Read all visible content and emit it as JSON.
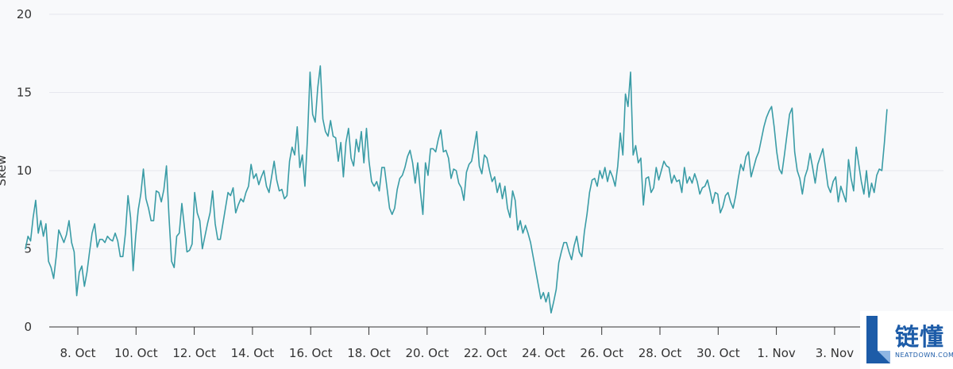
{
  "chart_data": {
    "type": "line",
    "ylabel": "Skew",
    "ylim": [
      0,
      20
    ],
    "y_ticks": [
      "0",
      "5",
      "10",
      "15",
      "20"
    ],
    "x_ticks": [
      "8. Oct",
      "10. Oct",
      "12. Oct",
      "14. Oct",
      "16. Oct",
      "18. Oct",
      "20. Oct",
      "22. Oct",
      "24. Oct",
      "26. Oct",
      "28. Oct",
      "30. Oct",
      "1. Nov",
      "3. Nov"
    ],
    "x_start_tick_index": -0.9,
    "x_end_tick_index": 13.9,
    "line_color": "#3a9ca6",
    "series": [
      {
        "values": [
          5.0,
          5.8,
          5.5,
          7.0,
          8.1,
          6.0,
          6.8,
          5.8,
          6.6,
          4.2,
          3.8,
          3.1,
          4.5,
          6.2,
          5.8,
          5.4,
          5.9,
          6.8,
          5.4,
          4.8,
          2.0,
          3.5,
          3.9,
          2.6,
          3.5,
          4.8,
          6.0,
          6.6,
          5.1,
          5.6,
          5.6,
          5.4,
          5.8,
          5.6,
          5.5,
          6.0,
          5.5,
          4.5,
          4.5,
          6.0,
          8.4,
          7.0,
          3.6,
          5.8,
          7.5,
          8.5,
          10.1,
          8.2,
          7.6,
          6.8,
          6.8,
          8.7,
          8.6,
          8.0,
          8.8,
          10.3,
          7.0,
          4.2,
          3.8,
          5.8,
          6.0,
          7.9,
          6.4,
          4.8,
          4.9,
          5.3,
          8.6,
          7.3,
          6.8,
          5.0,
          5.8,
          6.6,
          7.3,
          8.7,
          6.6,
          5.6,
          5.6,
          6.6,
          7.6,
          8.6,
          8.4,
          8.9,
          7.3,
          7.8,
          8.2,
          8.0,
          8.6,
          9.0,
          10.4,
          9.5,
          9.8,
          9.1,
          9.6,
          10.0,
          9.0,
          8.6,
          9.6,
          10.6,
          9.4,
          8.7,
          8.8,
          8.2,
          8.4,
          10.6,
          11.5,
          11.0,
          12.8,
          10.2,
          11.0,
          9.0,
          12.1,
          16.3,
          13.6,
          13.1,
          15.3,
          16.7,
          13.3,
          12.5,
          12.2,
          13.2,
          12.2,
          12.1,
          10.6,
          11.8,
          9.6,
          11.8,
          12.7,
          10.8,
          10.3,
          12.0,
          11.2,
          12.5,
          10.5,
          12.7,
          10.6,
          9.3,
          9.0,
          9.3,
          8.7,
          10.2,
          10.2,
          8.9,
          7.6,
          7.2,
          7.6,
          8.8,
          9.5,
          9.7,
          10.2,
          10.9,
          11.3,
          10.5,
          9.2,
          10.5,
          8.7,
          7.2,
          10.5,
          9.7,
          11.4,
          11.4,
          11.2,
          12.0,
          12.6,
          11.2,
          11.3,
          10.8,
          9.5,
          10.1,
          10.0,
          9.2,
          8.9,
          8.1,
          9.9,
          10.4,
          10.6,
          11.5,
          12.5,
          10.3,
          9.8,
          11.0,
          10.8,
          10.0,
          9.3,
          9.6,
          8.6,
          9.2,
          8.2,
          9.0,
          7.6,
          7.0,
          8.7,
          8.1,
          6.2,
          6.8,
          6.0,
          6.5,
          6.0,
          5.4,
          4.5,
          3.6,
          2.7,
          1.8,
          2.2,
          1.6,
          2.2,
          0.9,
          1.6,
          2.4,
          4.1,
          4.8,
          5.4,
          5.4,
          4.8,
          4.3,
          5.2,
          5.8,
          4.8,
          4.5,
          6.1,
          7.2,
          8.6,
          9.4,
          9.5,
          9.0,
          10.0,
          9.5,
          10.2,
          9.3,
          10.0,
          9.6,
          9.0,
          10.3,
          12.4,
          11.0,
          14.9,
          14.1,
          16.3,
          11.0,
          11.6,
          10.5,
          10.8,
          7.8,
          9.5,
          9.6,
          8.6,
          8.9,
          10.2,
          9.4,
          10.0,
          10.6,
          10.3,
          10.2,
          9.2,
          9.7,
          9.3,
          9.4,
          8.6,
          10.2,
          9.2,
          9.6,
          9.2,
          9.8,
          9.3,
          8.5,
          8.9,
          9.0,
          9.4,
          8.7,
          7.9,
          8.6,
          8.5,
          7.3,
          7.7,
          8.4,
          8.6,
          8.0,
          7.6,
          8.4,
          9.5,
          10.4,
          10.0,
          10.9,
          11.2,
          9.6,
          10.2,
          10.8,
          11.2,
          12.0,
          12.8,
          13.4,
          13.8,
          14.1,
          12.8,
          11.2,
          10.1,
          9.8,
          11.0,
          12.3,
          13.6,
          14.0,
          11.2,
          10.0,
          9.5,
          8.5,
          9.6,
          10.1,
          11.1,
          10.2,
          9.2,
          10.4,
          10.9,
          11.4,
          10.2,
          9.0,
          8.6,
          9.3,
          9.6,
          8.0,
          9.0,
          8.5,
          8.0,
          10.7,
          9.5,
          8.7,
          11.5,
          10.4,
          9.3,
          8.5,
          10.0,
          8.3,
          9.2,
          8.6,
          9.7,
          10.1,
          10.0,
          11.8,
          13.9
        ]
      }
    ]
  },
  "watermark": {
    "text": "链懂",
    "subtext": "NEATDOWN.COM"
  }
}
